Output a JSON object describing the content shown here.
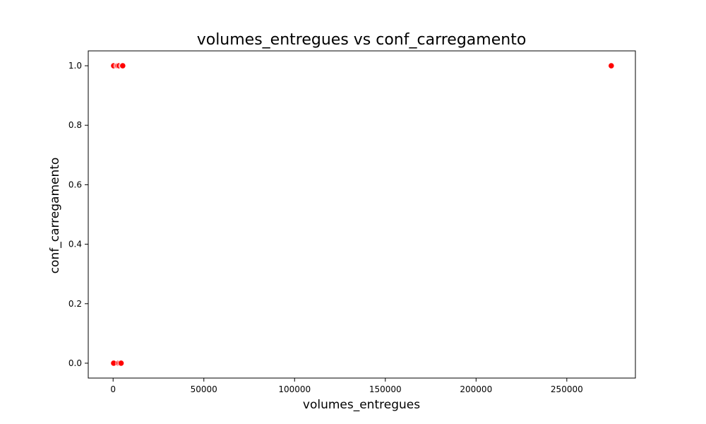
{
  "chart_data": {
    "type": "scatter",
    "title": "volumes_entregues vs conf_carregamento",
    "xlabel": "volumes_entregues",
    "ylabel": "conf_carregamento",
    "xlim": [
      -13700,
      287800
    ],
    "ylim": [
      -0.05,
      1.05
    ],
    "xticks": [
      0,
      50000,
      100000,
      150000,
      200000,
      250000
    ],
    "xtick_labels": [
      "0",
      "50000",
      "100000",
      "150000",
      "200000",
      "250000"
    ],
    "yticks": [
      0.0,
      0.2,
      0.4,
      0.6,
      0.8,
      1.0
    ],
    "ytick_labels": [
      "0.0",
      "0.2",
      "0.4",
      "0.6",
      "0.8",
      "1.0"
    ],
    "grid": false,
    "point_color": "#ff0000",
    "points": [
      {
        "x": 0,
        "y": 1
      },
      {
        "x": 100,
        "y": 1
      },
      {
        "x": 300,
        "y": 1
      },
      {
        "x": 2000,
        "y": 1
      },
      {
        "x": 2600,
        "y": 1
      },
      {
        "x": 3300,
        "y": 1
      },
      {
        "x": 4800,
        "y": 1
      },
      {
        "x": 5300,
        "y": 1
      },
      {
        "x": 274500,
        "y": 1
      },
      {
        "x": 0,
        "y": 0
      },
      {
        "x": 200,
        "y": 0
      },
      {
        "x": 300,
        "y": 0
      },
      {
        "x": 3000,
        "y": 0
      },
      {
        "x": 3800,
        "y": 0
      },
      {
        "x": 4400,
        "y": 0
      }
    ]
  }
}
